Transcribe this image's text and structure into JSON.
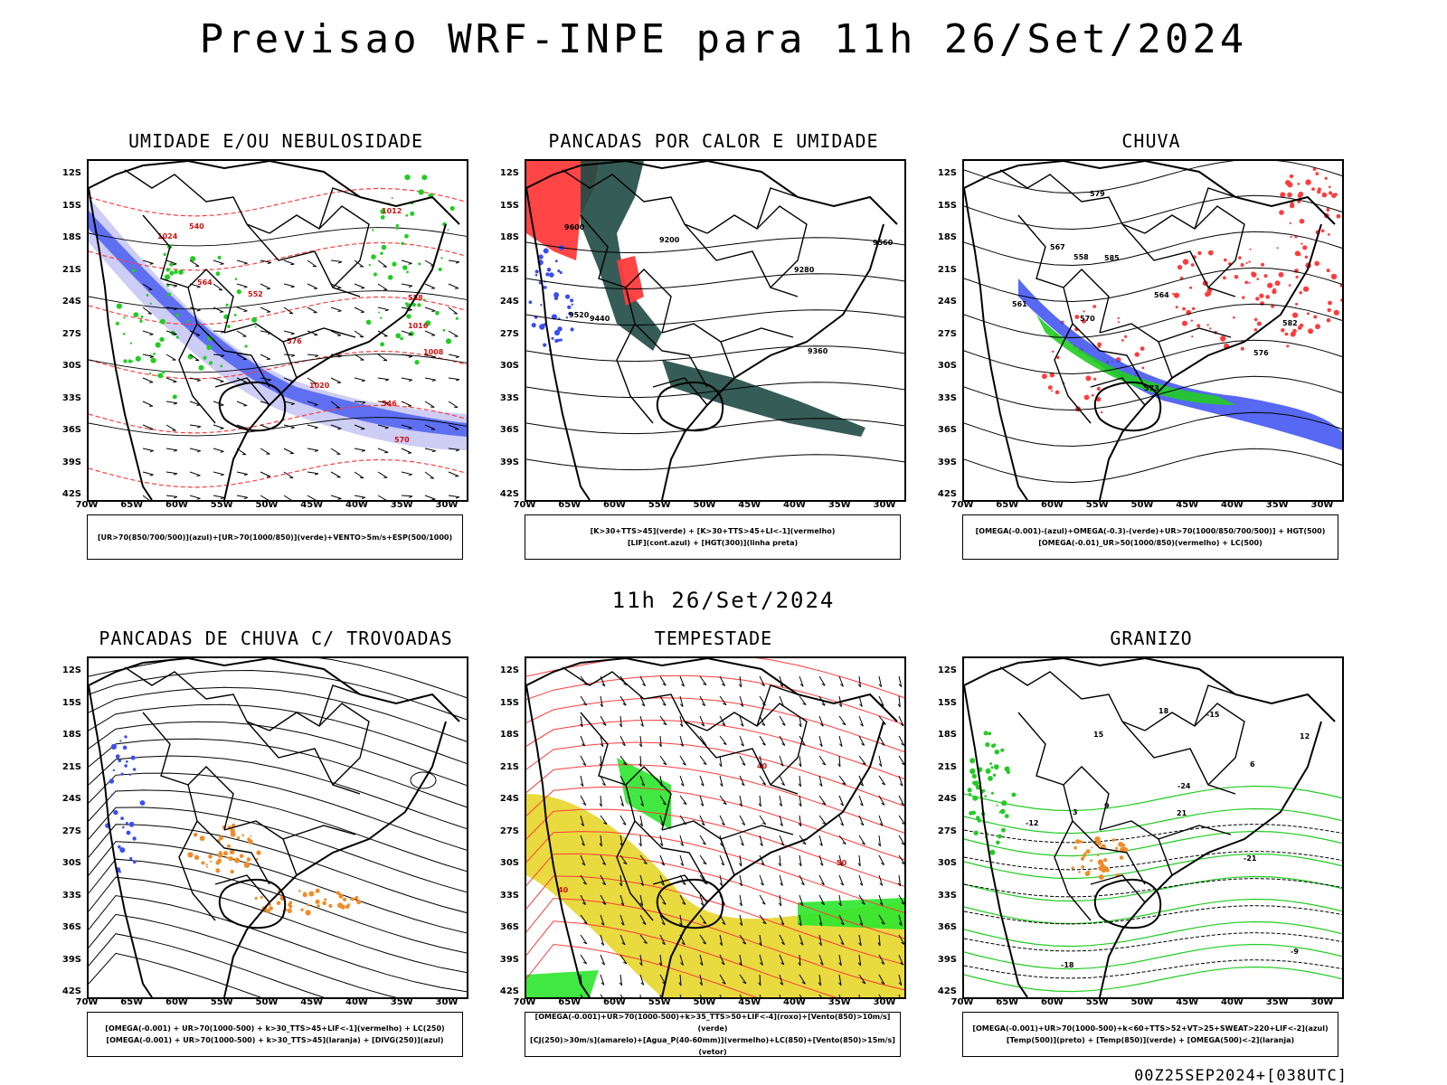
{
  "title": "Previsao WRF-INPE  para 11h 26/Set/2024",
  "subtitle": "11h 26/Set/2024",
  "footer": "00Z25SEP2024+[038UTC]",
  "lat_ticks": [
    "12S",
    "15S",
    "18S",
    "21S",
    "24S",
    "27S",
    "30S",
    "33S",
    "36S",
    "39S",
    "42S"
  ],
  "lon_ticks": [
    "70W",
    "65W",
    "60W",
    "55W",
    "50W",
    "45W",
    "40W",
    "35W",
    "30W"
  ],
  "colors": {
    "blue": "#3a4ff0",
    "lavender": "#c8c8f4",
    "green": "#22cc22",
    "red": "#ff3b3b",
    "orange": "#f08c28",
    "yellow": "#e6d62a",
    "darkteal": "#1f4a44",
    "brightgreen": "#2ee62e"
  },
  "panels": [
    {
      "id": "umidade",
      "title": "UMIDADE E/OU NEBULOSIDADE",
      "legend": [
        "[UR>70(850/700/500)](azul)+[UR>70(1000/850)](verde)+VENTO>5m/s+ESP(500/1000)"
      ],
      "labels": [
        "1016",
        "1020",
        "1012",
        "1008",
        "1024",
        "570",
        "576",
        "564",
        "558",
        "552",
        "546",
        "540"
      ]
    },
    {
      "id": "pancadas",
      "title": "PANCADAS POR CALOR E UMIDADE",
      "legend": [
        "[K>30+TTS>45](verde) + [K>30+TTS>45+LI<-1](vermelho)",
        "[LIF](cont.azul) + [HGT(300)](linha preta)"
      ],
      "labels": [
        "9560",
        "9600",
        "9520",
        "9440",
        "9360",
        "9280",
        "9200"
      ]
    },
    {
      "id": "chuva",
      "title": "CHUVA",
      "legend": [
        "[OMEGA(-0.001)-(azul)+OMEGA(-0.3)-(verde)+UR>70(1000/850/700/500)] + HGT(500)",
        "[OMEGA(-0.01)_UR>50(1000/850)(vermelho) + LC(500)"
      ],
      "labels": [
        "585",
        "582",
        "579",
        "576",
        "573",
        "570",
        "567",
        "564",
        "561",
        "558"
      ]
    },
    {
      "id": "trovoadas",
      "title": "PANCADAS DE CHUVA C/ TROVOADAS",
      "legend": [
        "[OMEGA(-0.001) + UR>70(1000-500) + k>30_TTS>45+LIF<-1](vermelho) + LC(250)",
        "[OMEGA(-0.001) + UR>70(1000-500) + k>30_TTS>45](laranja) + [DIVG(250)](azul)"
      ],
      "labels": []
    },
    {
      "id": "tempestade",
      "title": "TEMPESTADE",
      "legend": [
        "[OMEGA(-0.001)+UR>70(1000-500)+k>35_TTS>50+LIF<-4](roxo)+[Vento(850)>10m/s](verde)",
        "[CJ(250)>30m/s](amarelo)+[Agua_P(40-60mm)](vermelho)+LC(850)+[Vento(850)>15m/s](vetor)"
      ],
      "labels": [
        "40",
        "50",
        "40"
      ]
    },
    {
      "id": "granizo",
      "title": "GRANIZO",
      "legend": [
        "[OMEGA(-0.001)+UR>70(1000-500)+k<60+TTS>52+VT>25+SWEAT>220+LIF<-2](azul)",
        "[Temp(500)](preto) + [Temp(850)](verde) + [OMEGA(500)<-2](laranja)"
      ],
      "labels": [
        "-12",
        "-15",
        "-18",
        "-21",
        "-24",
        "-9",
        "12",
        "15",
        "18",
        "21",
        "9",
        "3",
        "6"
      ]
    }
  ]
}
